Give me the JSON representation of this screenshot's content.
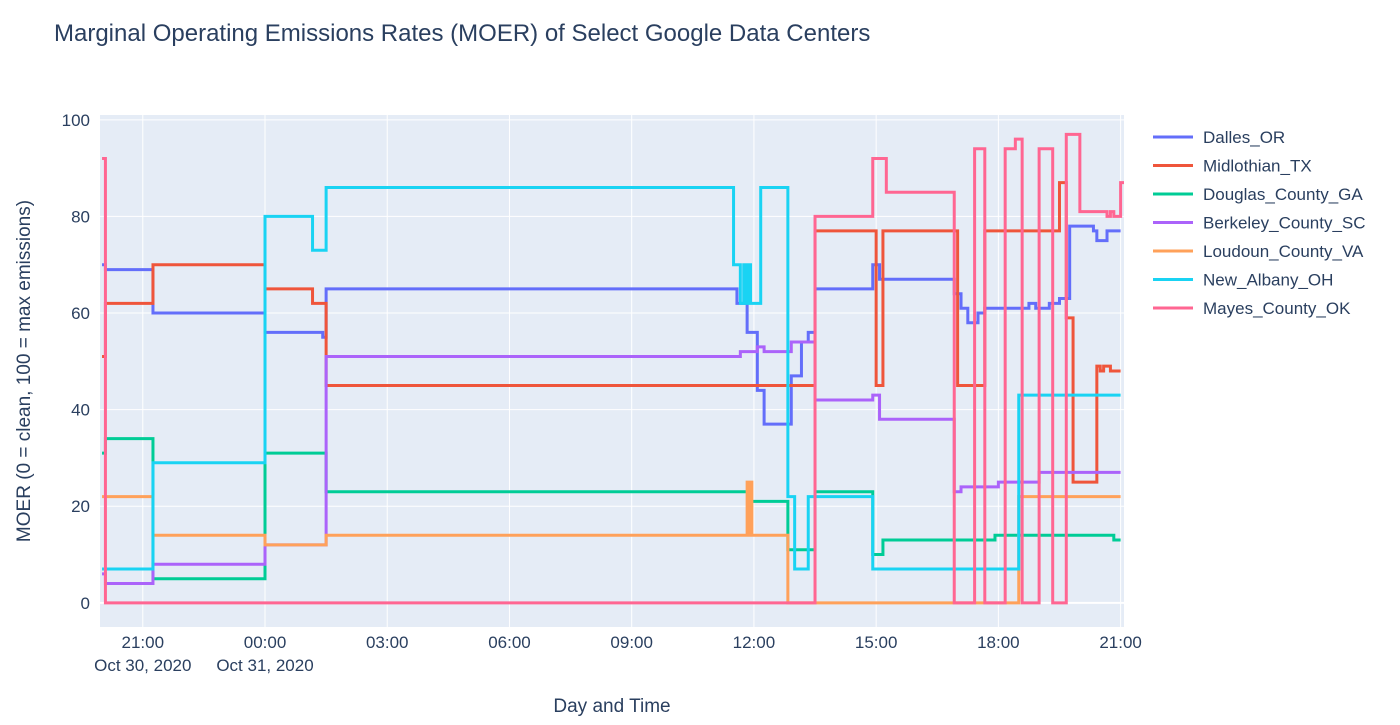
{
  "chart_data": {
    "type": "line",
    "line_shape": "step",
    "title": "Marginal Operating Emissions Rates (MOER) of Select Google Data Centers",
    "xlabel": "Day and Time",
    "ylabel": "MOER (0 = clean, 100 = max emissions)",
    "xlim": [
      "2020-10-30 19:57",
      "2020-10-31 21:05"
    ],
    "ylim": [
      -5,
      101
    ],
    "x_ticks": [
      {
        "t": "2020-10-30 21:00",
        "label": "21:00",
        "sub": "Oct 30, 2020"
      },
      {
        "t": "2020-10-31 00:00",
        "label": "00:00",
        "sub": "Oct 31, 2020"
      },
      {
        "t": "2020-10-31 03:00",
        "label": "03:00",
        "sub": ""
      },
      {
        "t": "2020-10-31 06:00",
        "label": "06:00",
        "sub": ""
      },
      {
        "t": "2020-10-31 09:00",
        "label": "09:00",
        "sub": ""
      },
      {
        "t": "2020-10-31 12:00",
        "label": "12:00",
        "sub": ""
      },
      {
        "t": "2020-10-31 15:00",
        "label": "15:00",
        "sub": ""
      },
      {
        "t": "2020-10-31 18:00",
        "label": "18:00",
        "sub": ""
      },
      {
        "t": "2020-10-31 21:00",
        "label": "21:00",
        "sub": ""
      }
    ],
    "y_ticks": [
      0,
      20,
      40,
      60,
      80,
      100
    ],
    "grid": true,
    "plot_background": "#e5ecf6",
    "legend_position": "right",
    "series": [
      {
        "name": "Dalles_OR",
        "color": "#636efa",
        "points": [
          [
            "2020-10-30 20:00",
            70
          ],
          [
            "2020-10-30 20:05",
            69
          ],
          [
            "2020-10-30 21:15",
            60
          ],
          [
            "2020-10-31 00:00",
            56
          ],
          [
            "2020-10-31 01:25",
            55
          ],
          [
            "2020-10-31 01:30",
            65
          ],
          [
            "2020-10-31 11:35",
            62
          ],
          [
            "2020-10-31 11:50",
            56
          ],
          [
            "2020-10-31 12:05",
            44
          ],
          [
            "2020-10-31 12:15",
            37
          ],
          [
            "2020-10-31 12:55",
            47
          ],
          [
            "2020-10-31 13:10",
            54
          ],
          [
            "2020-10-31 13:20",
            56
          ],
          [
            "2020-10-31 13:30",
            65
          ],
          [
            "2020-10-31 14:55",
            70
          ],
          [
            "2020-10-31 15:05",
            67
          ],
          [
            "2020-10-31 16:55",
            64
          ],
          [
            "2020-10-31 17:05",
            61
          ],
          [
            "2020-10-31 17:15",
            58
          ],
          [
            "2020-10-31 17:30",
            60
          ],
          [
            "2020-10-31 17:40",
            61
          ],
          [
            "2020-10-31 18:45",
            62
          ],
          [
            "2020-10-31 18:55",
            61
          ],
          [
            "2020-10-31 19:15",
            62
          ],
          [
            "2020-10-31 19:30",
            63
          ],
          [
            "2020-10-31 19:45",
            78
          ],
          [
            "2020-10-31 20:20",
            77
          ],
          [
            "2020-10-31 20:25",
            75
          ],
          [
            "2020-10-31 20:40",
            77
          ],
          [
            "2020-10-31 21:00",
            77
          ]
        ]
      },
      {
        "name": "Midlothian_TX",
        "color": "#ef553b",
        "points": [
          [
            "2020-10-30 20:00",
            51
          ],
          [
            "2020-10-30 20:05",
            62
          ],
          [
            "2020-10-30 21:15",
            70
          ],
          [
            "2020-10-31 00:00",
            65
          ],
          [
            "2020-10-31 01:10",
            62
          ],
          [
            "2020-10-31 01:30",
            45
          ],
          [
            "2020-10-31 13:30",
            77
          ],
          [
            "2020-10-31 15:00",
            45
          ],
          [
            "2020-10-31 15:10",
            77
          ],
          [
            "2020-10-31 17:00",
            45
          ],
          [
            "2020-10-31 17:40",
            77
          ],
          [
            "2020-10-31 19:30",
            87
          ],
          [
            "2020-10-31 19:40",
            59
          ],
          [
            "2020-10-31 19:50",
            25
          ],
          [
            "2020-10-31 20:25",
            49
          ],
          [
            "2020-10-31 20:30",
            48
          ],
          [
            "2020-10-31 20:35",
            49
          ],
          [
            "2020-10-31 20:45",
            48
          ],
          [
            "2020-10-31 21:00",
            48
          ]
        ]
      },
      {
        "name": "Douglas_County_GA",
        "color": "#00cc96",
        "points": [
          [
            "2020-10-30 20:00",
            31
          ],
          [
            "2020-10-30 20:05",
            34
          ],
          [
            "2020-10-30 21:15",
            5
          ],
          [
            "2020-10-31 00:00",
            31
          ],
          [
            "2020-10-31 01:30",
            23
          ],
          [
            "2020-10-31 11:55",
            21
          ],
          [
            "2020-10-31 12:50",
            11
          ],
          [
            "2020-10-31 13:30",
            23
          ],
          [
            "2020-10-31 14:55",
            10
          ],
          [
            "2020-10-31 15:10",
            13
          ],
          [
            "2020-10-31 17:55",
            14
          ],
          [
            "2020-10-31 20:50",
            13
          ],
          [
            "2020-10-31 21:00",
            13
          ]
        ]
      },
      {
        "name": "Berkeley_County_SC",
        "color": "#ab63fa",
        "points": [
          [
            "2020-10-30 20:00",
            6
          ],
          [
            "2020-10-30 20:05",
            4
          ],
          [
            "2020-10-30 21:15",
            8
          ],
          [
            "2020-10-31 00:00",
            12
          ],
          [
            "2020-10-31 01:30",
            51
          ],
          [
            "2020-10-31 11:40",
            52
          ],
          [
            "2020-10-31 12:05",
            53
          ],
          [
            "2020-10-31 12:15",
            52
          ],
          [
            "2020-10-31 12:55",
            54
          ],
          [
            "2020-10-31 13:30",
            42
          ],
          [
            "2020-10-31 14:55",
            43
          ],
          [
            "2020-10-31 15:05",
            38
          ],
          [
            "2020-10-31 16:55",
            23
          ],
          [
            "2020-10-31 17:05",
            24
          ],
          [
            "2020-10-31 18:00",
            25
          ],
          [
            "2020-10-31 19:00",
            27
          ],
          [
            "2020-10-31 21:00",
            27
          ]
        ]
      },
      {
        "name": "Loudoun_County_VA",
        "color": "#ffa15a",
        "points": [
          [
            "2020-10-30 20:00",
            22
          ],
          [
            "2020-10-30 21:15",
            14
          ],
          [
            "2020-10-31 00:00",
            12
          ],
          [
            "2020-10-31 01:30",
            14
          ],
          [
            "2020-10-31 11:50",
            25
          ],
          [
            "2020-10-31 11:52",
            14
          ],
          [
            "2020-10-31 11:55",
            25
          ],
          [
            "2020-10-31 11:57",
            14
          ],
          [
            "2020-10-31 12:50",
            0
          ],
          [
            "2020-10-31 18:30",
            22
          ],
          [
            "2020-10-31 21:00",
            22
          ]
        ]
      },
      {
        "name": "New_Albany_OH",
        "color": "#19d3f3",
        "points": [
          [
            "2020-10-30 20:00",
            7
          ],
          [
            "2020-10-30 21:15",
            29
          ],
          [
            "2020-10-31 00:00",
            80
          ],
          [
            "2020-10-31 01:10",
            73
          ],
          [
            "2020-10-31 01:30",
            86
          ],
          [
            "2020-10-31 11:30",
            70
          ],
          [
            "2020-10-31 11:40",
            62
          ],
          [
            "2020-10-31 11:45",
            70
          ],
          [
            "2020-10-31 11:48",
            62
          ],
          [
            "2020-10-31 11:52",
            70
          ],
          [
            "2020-10-31 11:55",
            62
          ],
          [
            "2020-10-31 12:10",
            86
          ],
          [
            "2020-10-31 12:50",
            22
          ],
          [
            "2020-10-31 13:00",
            7
          ],
          [
            "2020-10-31 13:20",
            22
          ],
          [
            "2020-10-31 14:55",
            7
          ],
          [
            "2020-10-31 18:30",
            43
          ],
          [
            "2020-10-31 21:00",
            43
          ]
        ]
      },
      {
        "name": "Mayes_County_OK",
        "color": "#ff6692",
        "points": [
          [
            "2020-10-30 20:00",
            92
          ],
          [
            "2020-10-30 20:05",
            0
          ],
          [
            "2020-10-31 13:30",
            80
          ],
          [
            "2020-10-31 14:55",
            92
          ],
          [
            "2020-10-31 15:15",
            85
          ],
          [
            "2020-10-31 16:55",
            0
          ],
          [
            "2020-10-31 17:25",
            94
          ],
          [
            "2020-10-31 17:40",
            0
          ],
          [
            "2020-10-31 18:10",
            94
          ],
          [
            "2020-10-31 18:25",
            96
          ],
          [
            "2020-10-31 18:35",
            0
          ],
          [
            "2020-10-31 19:00",
            94
          ],
          [
            "2020-10-31 19:20",
            0
          ],
          [
            "2020-10-31 19:40",
            97
          ],
          [
            "2020-10-31 20:00",
            81
          ],
          [
            "2020-10-31 20:40",
            80
          ],
          [
            "2020-10-31 20:45",
            81
          ],
          [
            "2020-10-31 20:50",
            80
          ],
          [
            "2020-10-31 21:00",
            87
          ],
          [
            "2020-10-31 21:05",
            87
          ]
        ]
      }
    ]
  }
}
